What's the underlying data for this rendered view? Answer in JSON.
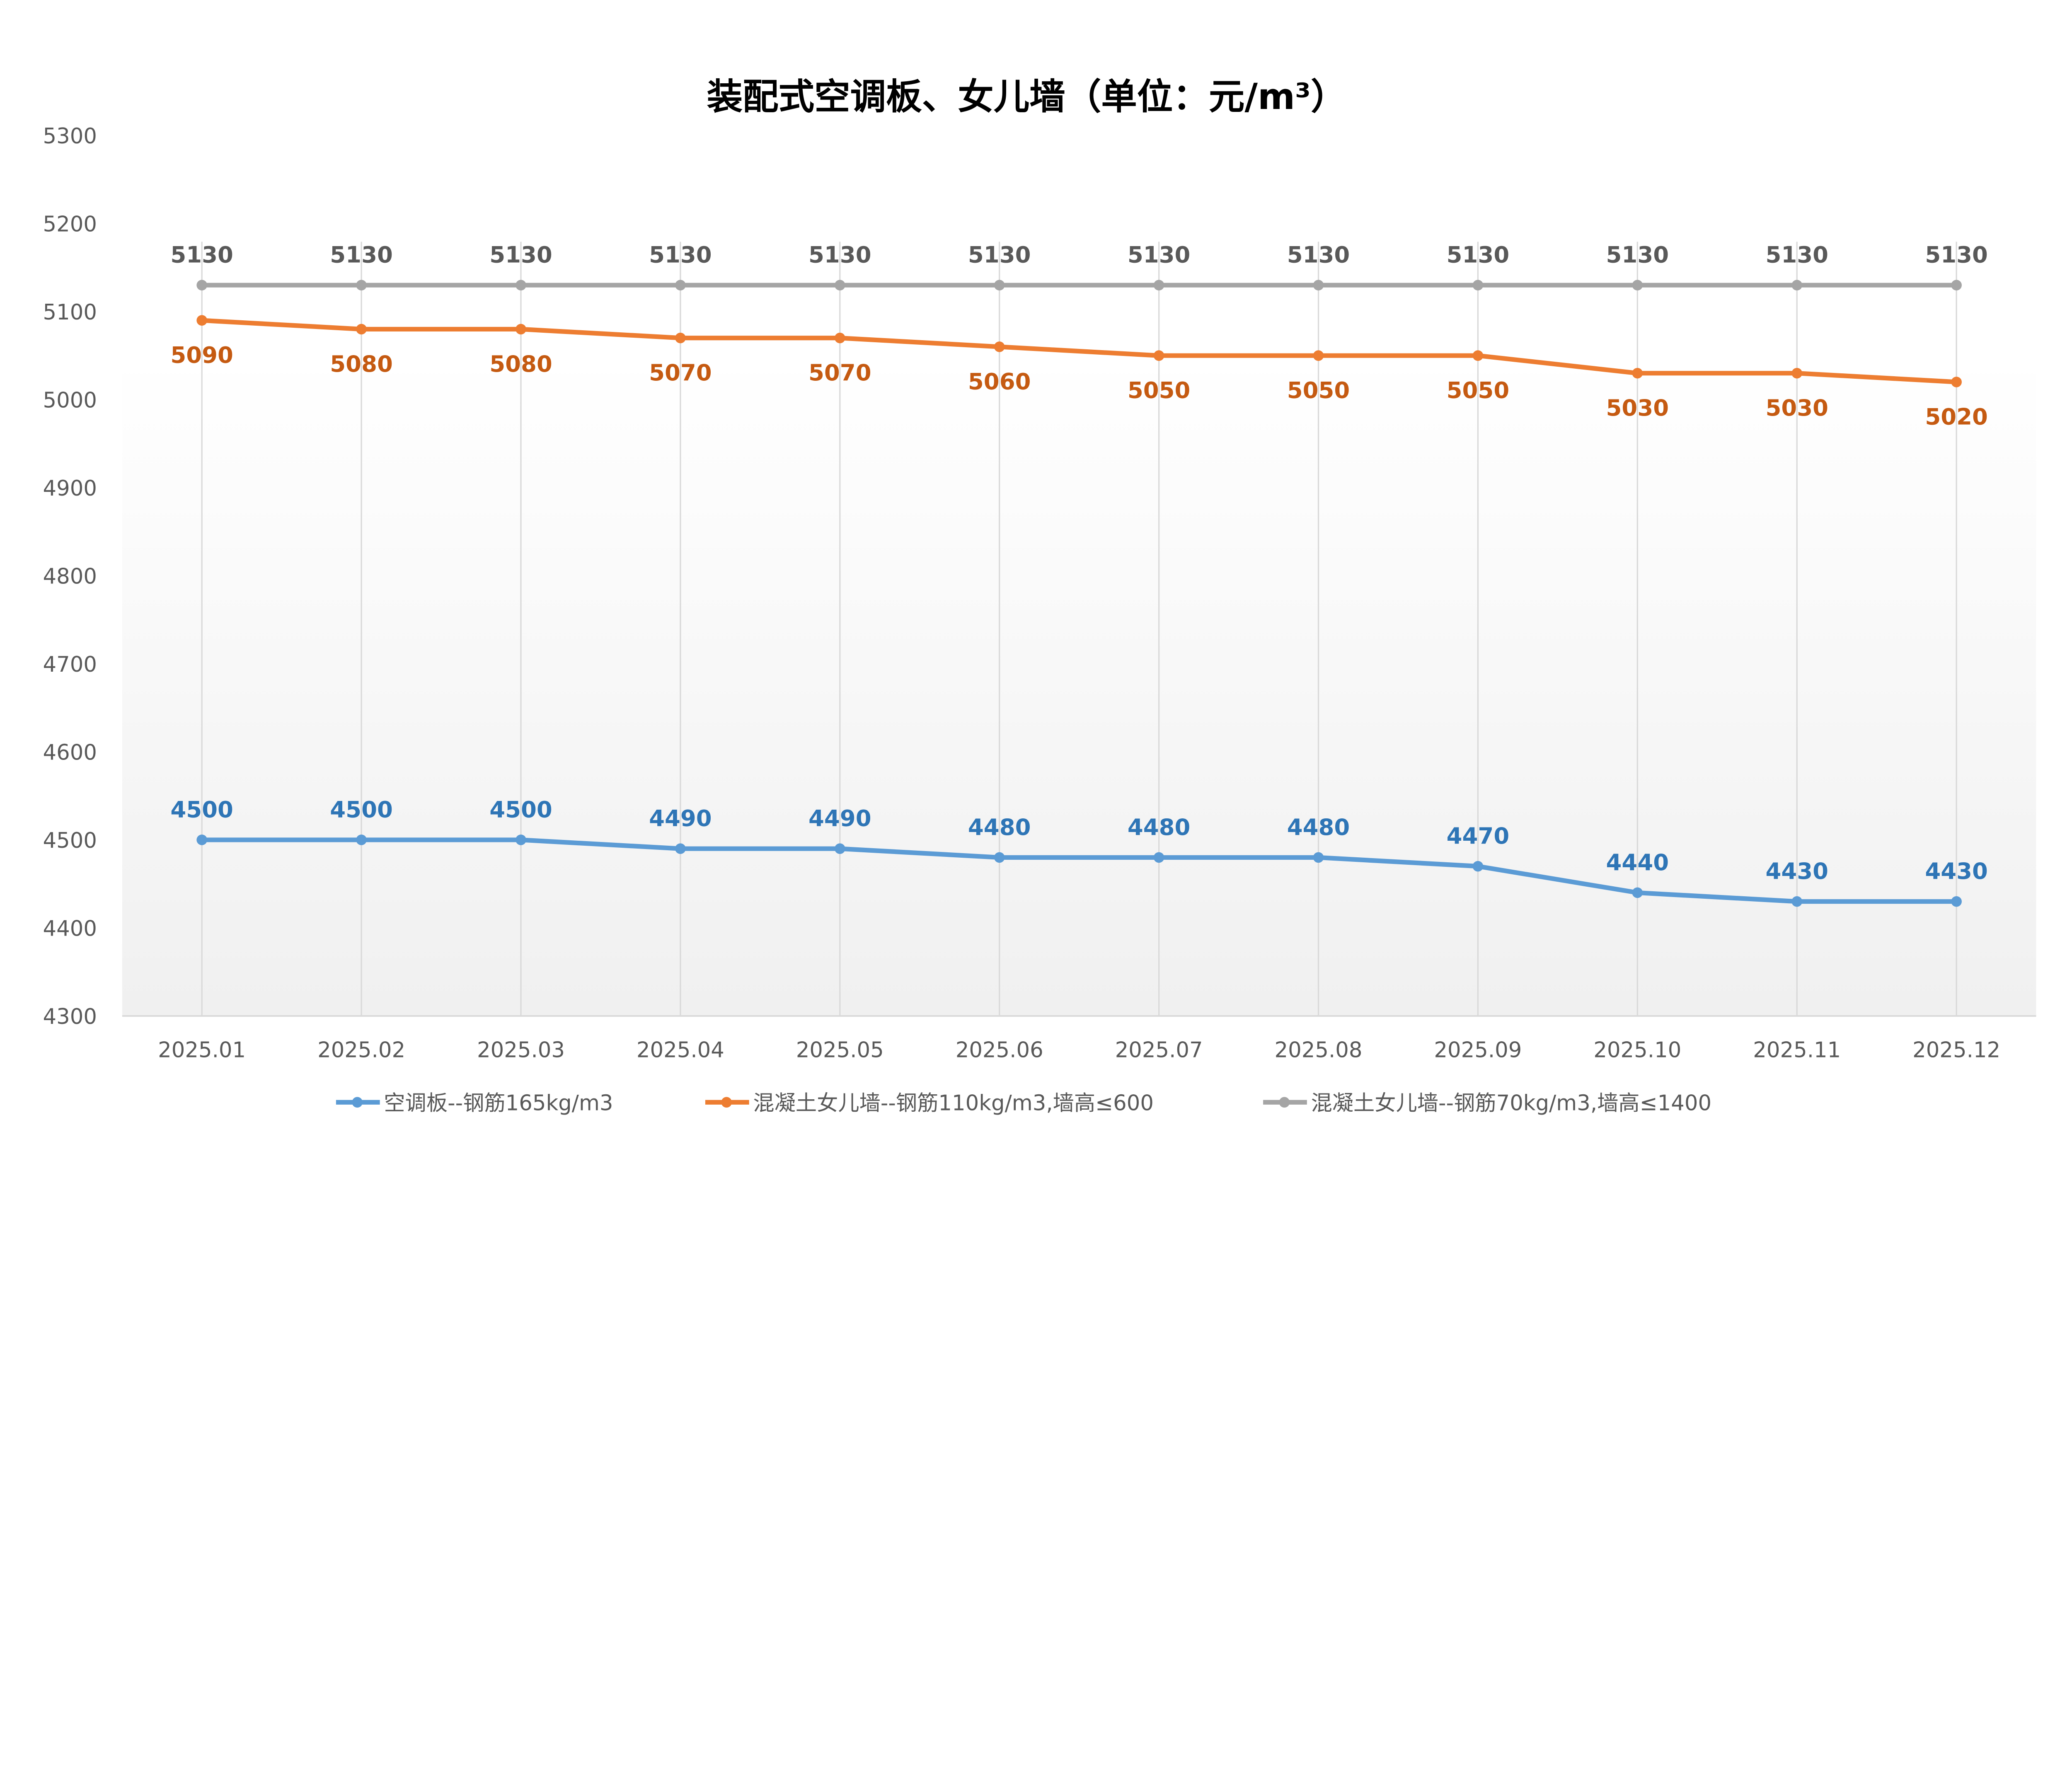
{
  "chart_data": {
    "type": "line",
    "title": "装配式空调板、女儿墙（单位：元/m³）",
    "xlabel": "",
    "ylabel": "",
    "ylim": [
      4300,
      5300
    ],
    "yticks": [
      "4300",
      "4400",
      "4500",
      "4600",
      "4700",
      "4800",
      "4900",
      "5000",
      "5100",
      "5200",
      "5300"
    ],
    "categories": [
      "2025.01",
      "2025.02",
      "2025.03",
      "2025.04",
      "2025.05",
      "2025.06",
      "2025.07",
      "2025.08",
      "2025.09",
      "2025.10",
      "2025.11",
      "2025.12"
    ],
    "grid": "vertical lines at categories",
    "legend_position": "bottom",
    "series": [
      {
        "name": "空调板--钢筋165kg/m3",
        "color": "#5b9bd5",
        "label_color": "#2e75b6",
        "label_position": "above",
        "values": [
          4500,
          4500,
          4500,
          4490,
          4490,
          4480,
          4480,
          4480,
          4470,
          4440,
          4430,
          4430
        ]
      },
      {
        "name": "混凝土女儿墙--钢筋110kg/m3,墙高≤600",
        "color": "#ed7d31",
        "label_color": "#c55a11",
        "label_position": "below",
        "values": [
          5090,
          5080,
          5080,
          5070,
          5070,
          5060,
          5050,
          5050,
          5050,
          5030,
          5030,
          5020
        ]
      },
      {
        "name": "混凝土女儿墙--钢筋70kg/m3,墙高≤1400",
        "color": "#a5a5a5",
        "label_color": "#595959",
        "label_position": "above",
        "values": [
          5130,
          5130,
          5130,
          5130,
          5130,
          5130,
          5130,
          5130,
          5130,
          5130,
          5130,
          5130
        ]
      }
    ]
  }
}
